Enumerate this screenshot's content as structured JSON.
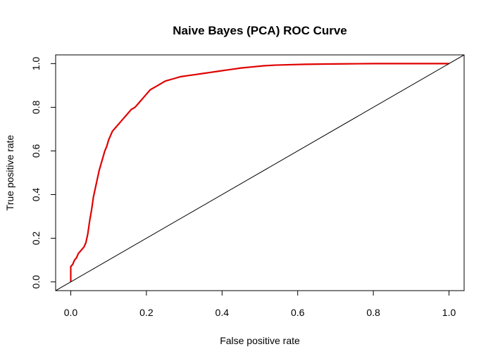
{
  "chart_data": {
    "type": "line",
    "title": "Naive Bayes (PCA) ROC Curve",
    "xlabel": "False positive rate",
    "ylabel": "True positive rate",
    "xlim": [
      -0.04,
      1.04
    ],
    "ylim": [
      -0.04,
      1.04
    ],
    "grid": false,
    "legend": "none",
    "x_ticks": [
      {
        "value": 0.0,
        "label": "0.0"
      },
      {
        "value": 0.2,
        "label": "0.2"
      },
      {
        "value": 0.4,
        "label": "0.4"
      },
      {
        "value": 0.6,
        "label": "0.6"
      },
      {
        "value": 0.8,
        "label": "0.8"
      },
      {
        "value": 1.0,
        "label": "1.0"
      }
    ],
    "y_ticks": [
      {
        "value": 0.0,
        "label": "0.0"
      },
      {
        "value": 0.2,
        "label": "0.2"
      },
      {
        "value": 0.4,
        "label": "0.4"
      },
      {
        "value": 0.6,
        "label": "0.6"
      },
      {
        "value": 0.8,
        "label": "0.8"
      },
      {
        "value": 1.0,
        "label": "1.0"
      }
    ],
    "series": [
      {
        "color": "#e00000",
        "x": [
          0.0,
          0.0,
          0.0,
          0.005,
          0.01,
          0.015,
          0.02,
          0.025,
          0.03,
          0.035,
          0.04,
          0.045,
          0.05,
          0.055,
          0.06,
          0.065,
          0.07,
          0.075,
          0.08,
          0.085,
          0.09,
          0.095,
          0.1,
          0.105,
          0.11,
          0.115,
          0.12,
          0.13,
          0.14,
          0.15,
          0.16,
          0.17,
          0.18,
          0.19,
          0.2,
          0.21,
          0.22,
          0.23,
          0.24,
          0.25,
          0.27,
          0.29,
          0.31,
          0.33,
          0.35,
          0.37,
          0.39,
          0.41,
          0.43,
          0.45,
          0.48,
          0.51,
          0.54,
          0.58,
          0.62,
          0.67,
          0.72,
          0.8,
          0.9,
          1.0
        ],
        "y": [
          0.0,
          0.05,
          0.07,
          0.08,
          0.1,
          0.11,
          0.13,
          0.14,
          0.15,
          0.16,
          0.18,
          0.22,
          0.28,
          0.33,
          0.39,
          0.43,
          0.47,
          0.51,
          0.54,
          0.57,
          0.6,
          0.62,
          0.65,
          0.67,
          0.69,
          0.7,
          0.71,
          0.73,
          0.75,
          0.77,
          0.79,
          0.8,
          0.82,
          0.84,
          0.86,
          0.88,
          0.89,
          0.9,
          0.91,
          0.92,
          0.93,
          0.94,
          0.945,
          0.95,
          0.955,
          0.96,
          0.965,
          0.97,
          0.975,
          0.98,
          0.985,
          0.99,
          0.993,
          0.995,
          0.997,
          0.998,
          0.999,
          1.0,
          1.0,
          1.0
        ]
      },
      {
        "color": "#000000",
        "x": [
          -0.04,
          1.04
        ],
        "y": [
          -0.04,
          1.04
        ]
      }
    ]
  }
}
